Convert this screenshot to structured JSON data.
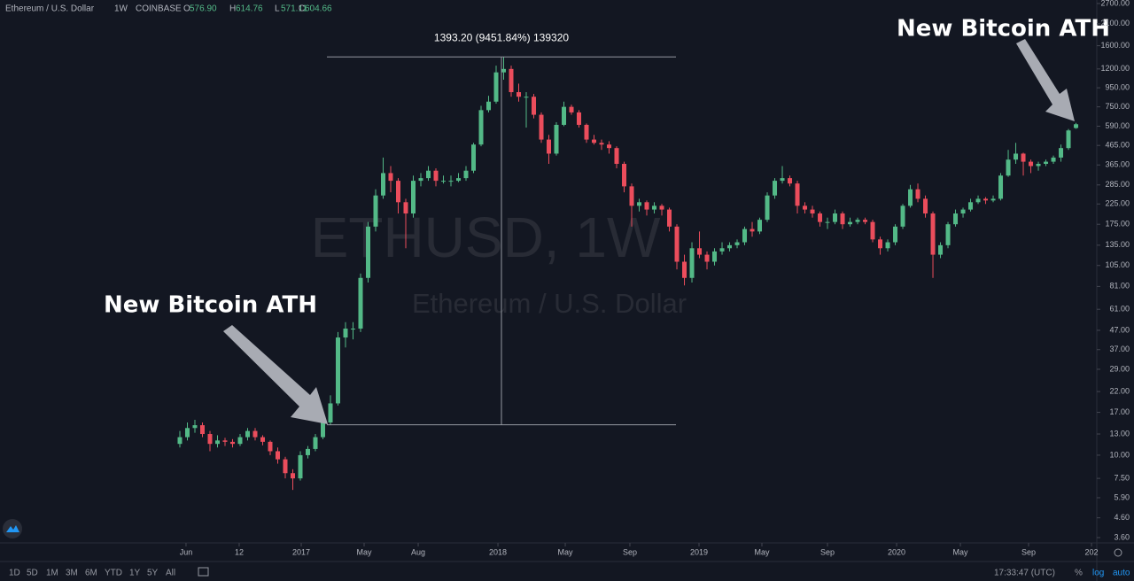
{
  "header": {
    "symbol": "Ethereum / U.S. Dollar",
    "interval": "1W",
    "exchange": "COINBASE",
    "ohlc": [
      {
        "label": "O",
        "value": "576.90"
      },
      {
        "label": "H",
        "value": "614.76"
      },
      {
        "label": "L",
        "value": "571.11"
      },
      {
        "label": "C",
        "value": "604.66"
      }
    ]
  },
  "watermark": {
    "symbol": "ETHUSD, 1W",
    "description": "Ethereum / U.S. Dollar"
  },
  "annotations": [
    "New Bitcoin ATH",
    "New Bitcoin ATH"
  ],
  "toolbar": {
    "ranges": [
      "1D",
      "5D",
      "1M",
      "3M",
      "6M",
      "YTD",
      "1Y",
      "5Y",
      "All"
    ],
    "time": "17:33:47 (UTC)",
    "percent": "%",
    "log": "log",
    "auto": "auto"
  },
  "chart_data": {
    "type": "candlestick",
    "log_scale": true,
    "up_color": "#53b987",
    "down_color": "#eb4d5c",
    "measure": {
      "label": "1393.20 (9451.84%) 139320",
      "from": 14.58,
      "to": 1393.2,
      "color": "#9598a1"
    },
    "xlim": [
      -23.88,
      121.76
    ],
    "xticks": [
      {
        "value": 0.82,
        "label": "Jun"
      },
      {
        "value": 7.88,
        "label": "12"
      },
      {
        "value": 16.12,
        "label": "2017"
      },
      {
        "value": 24.47,
        "label": "May"
      },
      {
        "value": 31.65,
        "label": "Aug"
      },
      {
        "value": 42.24,
        "label": "2018"
      },
      {
        "value": 51.18,
        "label": "May"
      },
      {
        "value": 59.76,
        "label": "Sep"
      },
      {
        "value": 68.94,
        "label": "2019"
      },
      {
        "value": 77.29,
        "label": "May"
      },
      {
        "value": 86.0,
        "label": "Sep"
      },
      {
        "value": 95.18,
        "label": "2020"
      },
      {
        "value": 103.65,
        "label": "May"
      },
      {
        "value": 112.7,
        "label": "Sep"
      },
      {
        "value": 121.06,
        "label": "202"
      }
    ],
    "ylim": [
      3.37,
      2820
    ],
    "yticks": [
      {
        "value": 2700,
        "label": "2700.00"
      },
      {
        "value": 2100,
        "label": "2100.00"
      },
      {
        "value": 1600,
        "label": "1600.00"
      },
      {
        "value": 1200,
        "label": "1200.00"
      },
      {
        "value": 950,
        "label": "950.00"
      },
      {
        "value": 750,
        "label": "750.00"
      },
      {
        "value": 590,
        "label": "590.00"
      },
      {
        "value": 465,
        "label": "465.00"
      },
      {
        "value": 365,
        "label": "365.00"
      },
      {
        "value": 285,
        "label": "285.00"
      },
      {
        "value": 225,
        "label": "225.00"
      },
      {
        "value": 175,
        "label": "175.00"
      },
      {
        "value": 135,
        "label": "135.00"
      },
      {
        "value": 105,
        "label": "105.00"
      },
      {
        "value": 81,
        "label": "81.00"
      },
      {
        "value": 61,
        "label": "61.00"
      },
      {
        "value": 47,
        "label": "47.00"
      },
      {
        "value": 37,
        "label": "37.00"
      },
      {
        "value": 29,
        "label": "29.00"
      },
      {
        "value": 22,
        "label": "22.00"
      },
      {
        "value": 17,
        "label": "17.00"
      },
      {
        "value": 13,
        "label": "13.00"
      },
      {
        "value": 10,
        "label": "10.00"
      },
      {
        "value": 7.5,
        "label": "7.50"
      },
      {
        "value": 5.9,
        "label": "5.90"
      },
      {
        "value": 4.6,
        "label": "4.60"
      },
      {
        "value": 3.6,
        "label": "3.60"
      }
    ],
    "open": [
      11.5,
      12.5,
      14,
      14.5,
      13,
      11.5,
      12,
      11.8,
      11.5,
      12.5,
      13.5,
      12.5,
      11.8,
      10.5,
      9.5,
      8,
      7.5,
      10,
      10.8,
      12.5,
      15,
      19,
      43,
      48,
      48,
      90,
      170,
      250,
      330,
      300,
      230,
      200,
      300,
      310,
      340,
      300,
      300,
      300,
      310,
      340,
      470,
      720,
      800,
      1150,
      1200,
      900,
      850,
      850,
      680,
      500,
      420,
      600,
      750,
      700,
      600,
      500,
      480,
      470,
      450,
      370,
      280,
      220,
      230,
      210,
      220,
      210,
      170,
      110,
      90,
      130,
      120,
      110,
      125,
      130,
      135,
      140,
      165,
      160,
      185,
      250,
      300,
      310,
      290,
      220,
      210,
      200,
      180,
      180,
      200,
      175,
      180,
      185,
      180,
      145,
      130,
      140,
      170,
      220,
      270,
      240,
      200,
      120,
      135,
      175,
      200,
      210,
      230,
      240,
      235,
      240,
      320,
      390,
      420,
      380,
      360,
      370,
      380,
      400,
      450,
      576.9
    ],
    "high": [
      13.5,
      15,
      15.5,
      15,
      13.5,
      12.8,
      12.4,
      12.2,
      13,
      14,
      14,
      12.8,
      12,
      11,
      9.8,
      8.4,
      10.5,
      11.2,
      13,
      15.5,
      21,
      46,
      52,
      52,
      95,
      180,
      270,
      400,
      360,
      310,
      240,
      320,
      330,
      360,
      350,
      320,
      320,
      330,
      360,
      480,
      760,
      860,
      1250,
      1393.2,
      1250,
      1000,
      900,
      880,
      700,
      530,
      620,
      800,
      770,
      720,
      610,
      530,
      500,
      490,
      460,
      380,
      290,
      240,
      235,
      230,
      225,
      215,
      175,
      120,
      140,
      160,
      125,
      130,
      140,
      140,
      145,
      170,
      180,
      190,
      260,
      310,
      360,
      320,
      300,
      230,
      220,
      205,
      190,
      210,
      205,
      190,
      190,
      190,
      185,
      150,
      145,
      175,
      225,
      285,
      290,
      250,
      205,
      140,
      180,
      210,
      215,
      240,
      250,
      245,
      250,
      330,
      440,
      480,
      425,
      390,
      380,
      390,
      410,
      470,
      570,
      614.76
    ],
    "low": [
      11,
      12,
      13.2,
      12.5,
      10.5,
      11,
      11.2,
      11,
      11.2,
      12,
      12,
      11.3,
      10,
      9,
      7.5,
      6.5,
      7.3,
      9.6,
      10.5,
      12.2,
      14.5,
      18.5,
      38,
      42,
      46,
      85,
      160,
      240,
      260,
      200,
      130,
      190,
      280,
      300,
      280,
      290,
      280,
      295,
      300,
      330,
      460,
      700,
      780,
      1050,
      850,
      800,
      580,
      650,
      480,
      370,
      410,
      590,
      680,
      580,
      480,
      470,
      440,
      420,
      350,
      260,
      170,
      205,
      195,
      200,
      195,
      160,
      100,
      82,
      85,
      115,
      100,
      105,
      120,
      125,
      130,
      135,
      150,
      155,
      180,
      240,
      290,
      280,
      200,
      200,
      190,
      170,
      165,
      175,
      165,
      170,
      175,
      175,
      140,
      120,
      125,
      135,
      165,
      215,
      230,
      190,
      90,
      115,
      130,
      170,
      190,
      205,
      225,
      225,
      230,
      235,
      315,
      370,
      320,
      330,
      340,
      360,
      370,
      380,
      440,
      571.11
    ],
    "close": [
      12.5,
      14,
      14.5,
      13,
      11.5,
      12,
      11.8,
      11.5,
      12.5,
      13.5,
      12.5,
      11.8,
      10.5,
      9.5,
      8,
      7.5,
      10,
      10.8,
      12.5,
      15,
      19,
      43,
      48,
      48,
      90,
      170,
      250,
      330,
      300,
      230,
      200,
      300,
      310,
      340,
      300,
      300,
      300,
      310,
      340,
      470,
      720,
      800,
      1150,
      1200,
      900,
      850,
      850,
      680,
      500,
      420,
      600,
      750,
      700,
      600,
      500,
      480,
      470,
      450,
      370,
      280,
      220,
      230,
      210,
      220,
      210,
      170,
      110,
      90,
      130,
      120,
      110,
      125,
      130,
      135,
      140,
      165,
      160,
      185,
      250,
      300,
      310,
      290,
      220,
      210,
      200,
      180,
      180,
      200,
      175,
      180,
      185,
      180,
      145,
      130,
      140,
      170,
      220,
      270,
      240,
      200,
      120,
      135,
      175,
      200,
      210,
      230,
      240,
      235,
      240,
      320,
      390,
      420,
      380,
      360,
      370,
      380,
      400,
      450,
      560,
      604.66
    ]
  }
}
